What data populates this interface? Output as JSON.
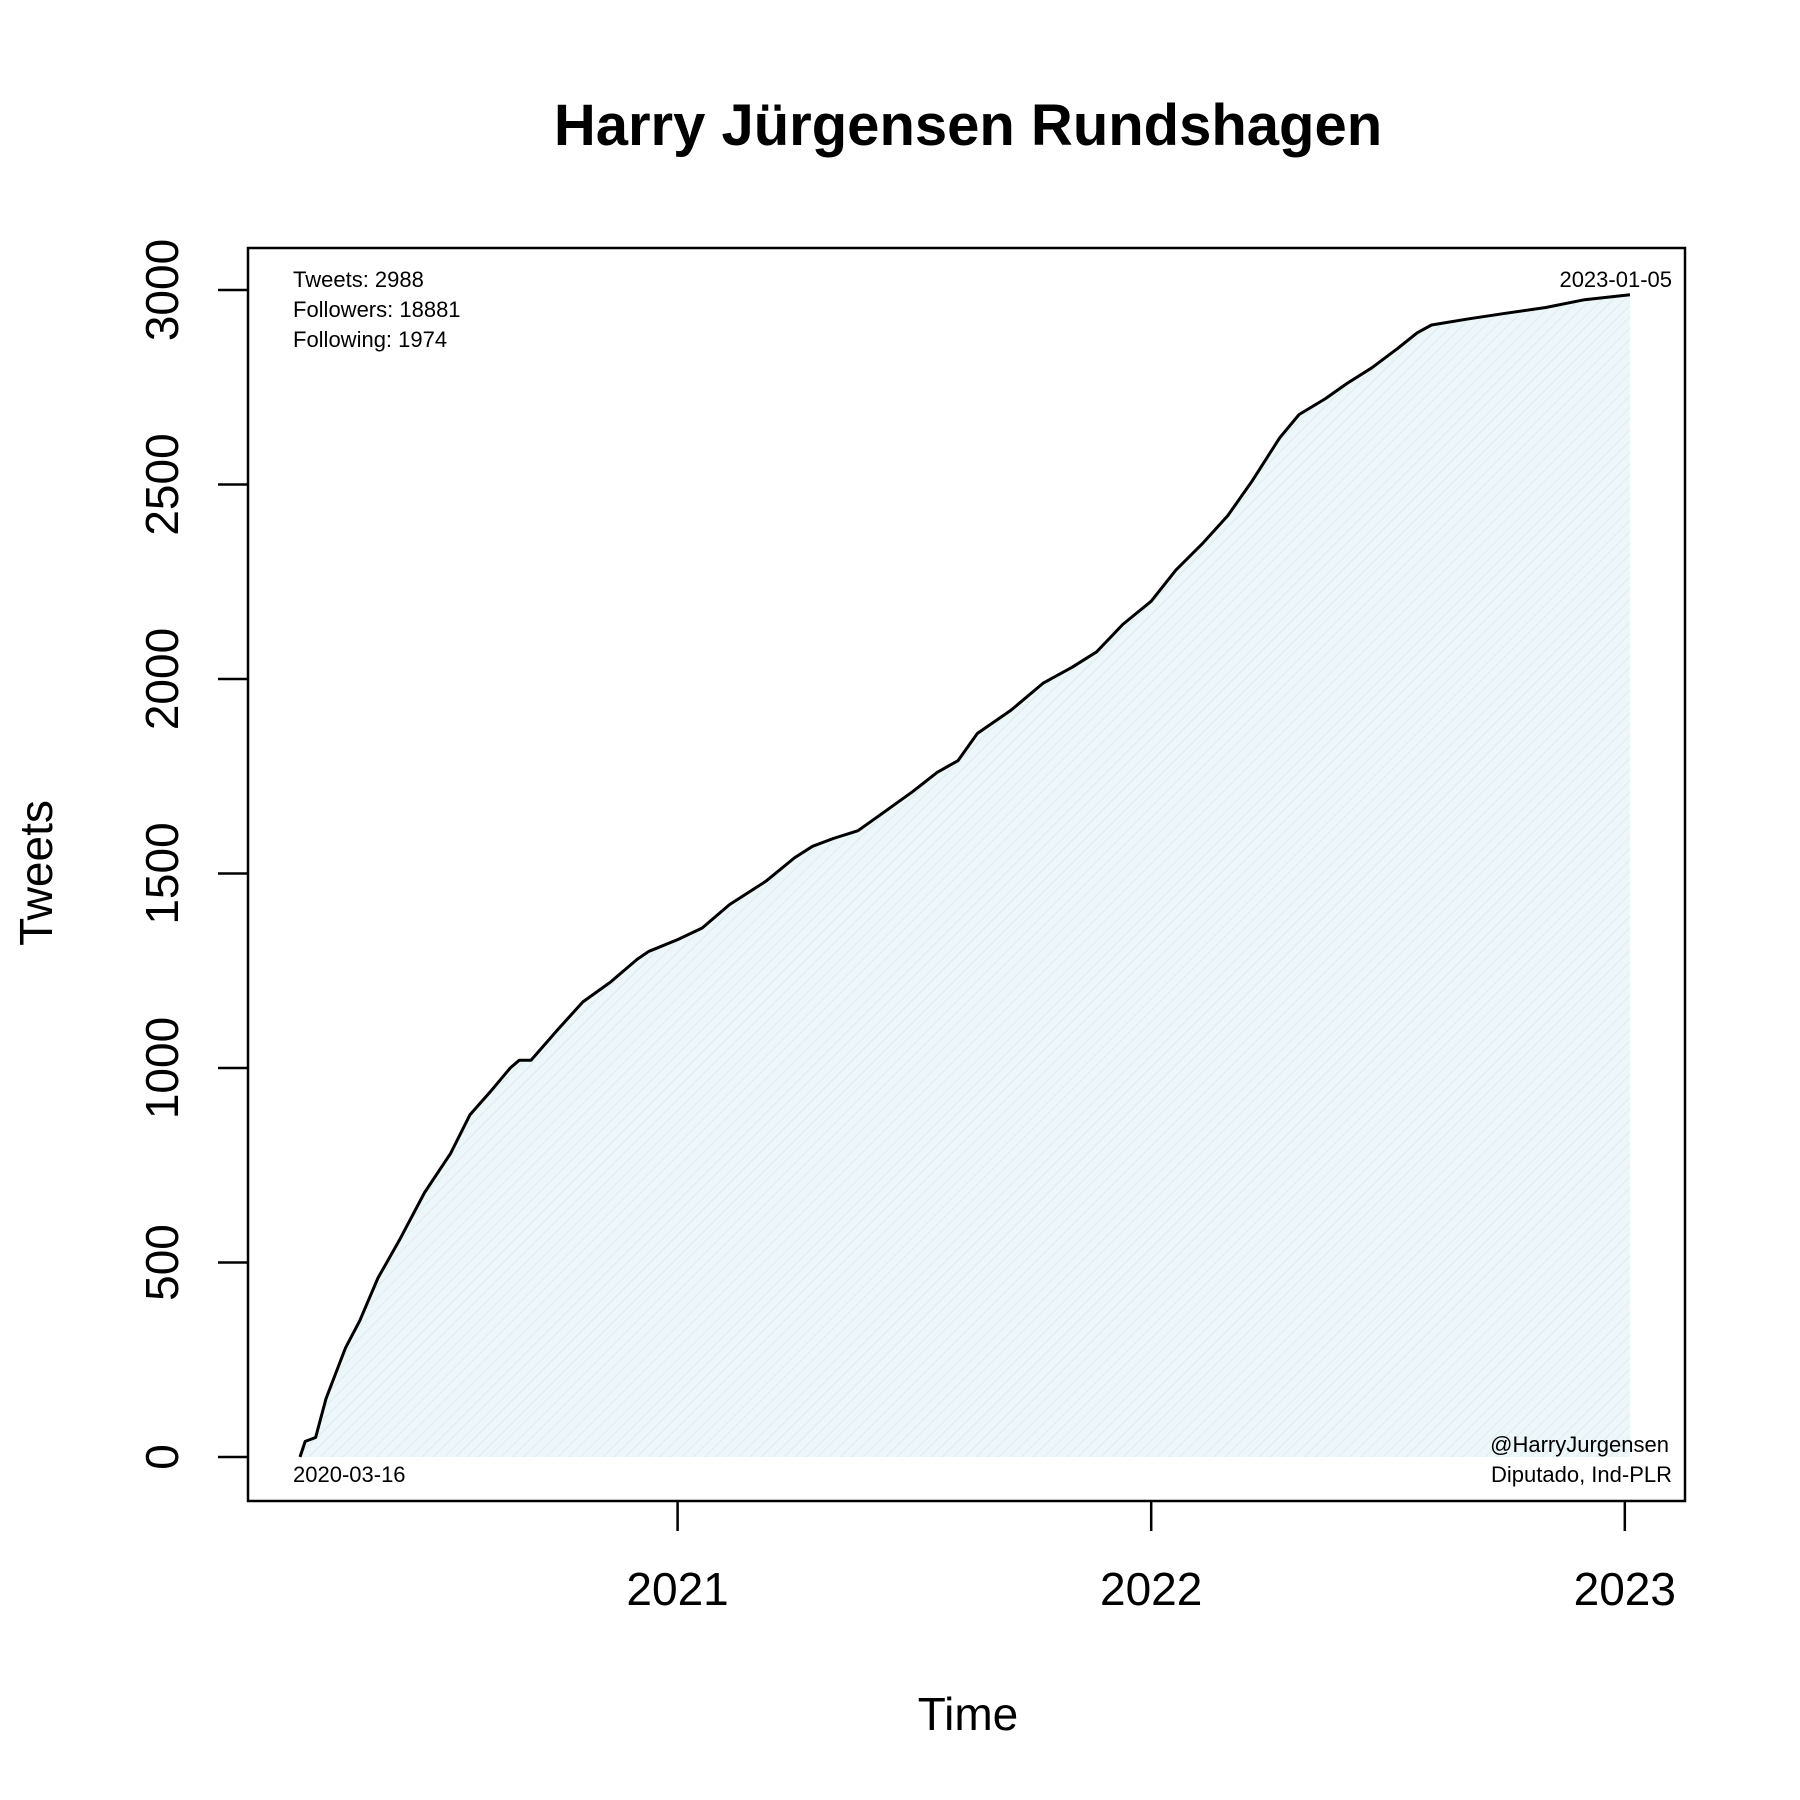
{
  "chart_data": {
    "type": "area",
    "title": "Harry Jürgensen Rundshagen",
    "xlabel": "Time",
    "ylabel": "Tweets",
    "xlim": [
      "2020-03-16",
      "2023-01-05"
    ],
    "ylim": [
      0,
      3000
    ],
    "x_ticks": [
      {
        "date": "2021-01-01",
        "label": "2021"
      },
      {
        "date": "2022-01-01",
        "label": "2022"
      },
      {
        "date": "2023-01-01",
        "label": "2023"
      }
    ],
    "y_ticks": [
      0,
      500,
      1000,
      1500,
      2000,
      2500,
      3000
    ],
    "grid": false,
    "fill_color": "#e8f3f6",
    "line_color": "#000000",
    "start_date_label": "2020-03-16",
    "end_date_label": "2023-01-05",
    "stats": [
      "Tweets: 2988",
      "Followers: 18881",
      "Following: 1974"
    ],
    "handle": "@HarryJurgensen",
    "description": "Diputado, Ind-PLR",
    "series": [
      {
        "points": [
          [
            "2020-03-16",
            0
          ],
          [
            "2020-03-20",
            40
          ],
          [
            "2020-03-28",
            50
          ],
          [
            "2020-04-05",
            150
          ],
          [
            "2020-04-20",
            280
          ],
          [
            "2020-05-01",
            350
          ],
          [
            "2020-05-15",
            460
          ],
          [
            "2020-06-01",
            560
          ],
          [
            "2020-06-20",
            680
          ],
          [
            "2020-07-10",
            780
          ],
          [
            "2020-07-25",
            880
          ],
          [
            "2020-08-10",
            940
          ],
          [
            "2020-08-25",
            1000
          ],
          [
            "2020-09-01",
            1020
          ],
          [
            "2020-09-10",
            1020
          ],
          [
            "2020-10-01",
            1100
          ],
          [
            "2020-10-20",
            1170
          ],
          [
            "2020-11-10",
            1220
          ],
          [
            "2020-12-01",
            1280
          ],
          [
            "2020-12-10",
            1300
          ],
          [
            "2021-01-01",
            1330
          ],
          [
            "2021-01-20",
            1360
          ],
          [
            "2021-02-10",
            1420
          ],
          [
            "2021-03-10",
            1480
          ],
          [
            "2021-04-01",
            1540
          ],
          [
            "2021-04-15",
            1570
          ],
          [
            "2021-05-01",
            1590
          ],
          [
            "2021-05-20",
            1610
          ],
          [
            "2021-06-10",
            1660
          ],
          [
            "2021-07-01",
            1710
          ],
          [
            "2021-07-20",
            1760
          ],
          [
            "2021-08-05",
            1790
          ],
          [
            "2021-08-20",
            1860
          ],
          [
            "2021-09-15",
            1920
          ],
          [
            "2021-10-10",
            1990
          ],
          [
            "2021-11-01",
            2030
          ],
          [
            "2021-11-20",
            2070
          ],
          [
            "2021-12-10",
            2140
          ],
          [
            "2022-01-01",
            2200
          ],
          [
            "2022-01-20",
            2280
          ],
          [
            "2022-02-10",
            2350
          ],
          [
            "2022-03-01",
            2420
          ],
          [
            "2022-03-20",
            2510
          ],
          [
            "2022-04-10",
            2620
          ],
          [
            "2022-04-25",
            2680
          ],
          [
            "2022-05-15",
            2720
          ],
          [
            "2022-06-01",
            2760
          ],
          [
            "2022-06-20",
            2800
          ],
          [
            "2022-07-10",
            2850
          ],
          [
            "2022-07-25",
            2890
          ],
          [
            "2022-08-05",
            2910
          ],
          [
            "2022-09-01",
            2925
          ],
          [
            "2022-10-01",
            2940
          ],
          [
            "2022-11-01",
            2955
          ],
          [
            "2022-12-01",
            2975
          ],
          [
            "2023-01-05",
            2988
          ]
        ]
      }
    ]
  }
}
